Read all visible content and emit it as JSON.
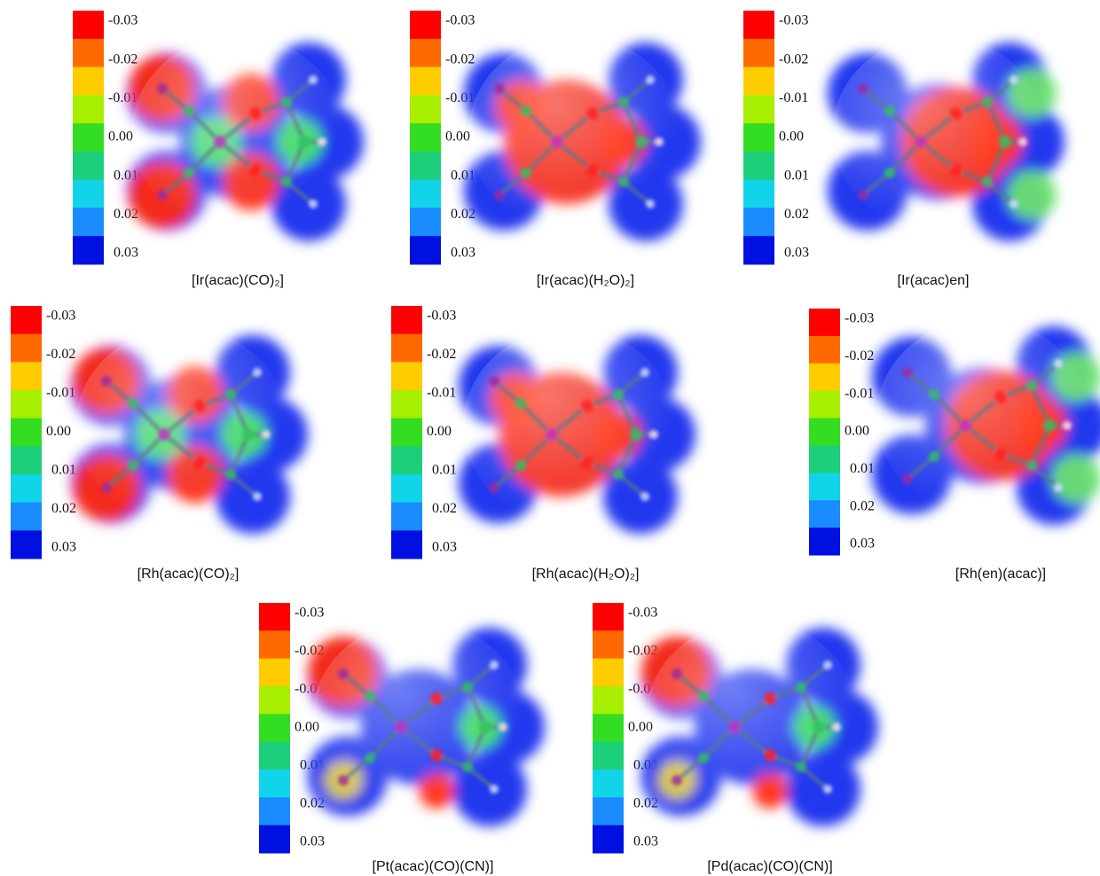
{
  "panels": [
    {
      "label": "[Ir(acac)(CO)₂]",
      "colorbar_ticks": [
        "-0.03",
        "-0.02",
        "-0.01",
        "0.00",
        "0.01",
        "0.02",
        "0.03"
      ]
    },
    {
      "label": "[Ir(acac)(H₂O)₂]",
      "colorbar_ticks": [
        "-0.03",
        "-0.02",
        "-0.01",
        "0.00",
        "0.01",
        "0.02",
        "0.03"
      ]
    },
    {
      "label": "[Ir(acac)en]",
      "colorbar_ticks": [
        "-0.03",
        "-0.02",
        "-0.01",
        "0.00",
        "0.01",
        "0.02",
        "0.03"
      ]
    },
    {
      "label": "[Rh(acac)(CO)₂]",
      "colorbar_ticks": [
        "-0.03",
        "-0.02",
        "-0.01",
        "0.00",
        "0.01",
        "0.02",
        "0.03"
      ]
    },
    {
      "label": "[Rh(acac)(H₂O)₂]",
      "colorbar_ticks": [
        "-0.03",
        "-0.02",
        "-0.01",
        "0.00",
        "0.01",
        "0.02",
        "0.03"
      ]
    },
    {
      "label": "[Rh(en)(acac)]",
      "colorbar_ticks": [
        "-0.03",
        "-0.02",
        "-0.01",
        "0.00",
        "0.01",
        "0.02",
        "0.03"
      ]
    },
    {
      "label": "[Pt(acac)(CO)(CN)]",
      "colorbar_ticks": [
        "-0.03",
        "-0.02",
        "-0.01",
        "0.00",
        "0.01",
        "0.02",
        "0.03"
      ]
    },
    {
      "label": "[Pd(acac)(CO)(CN)]",
      "colorbar_ticks": [
        "-0.03",
        "-0.02",
        "-0.01",
        "0.00",
        "0.01",
        "0.02",
        "0.03"
      ]
    }
  ]
}
